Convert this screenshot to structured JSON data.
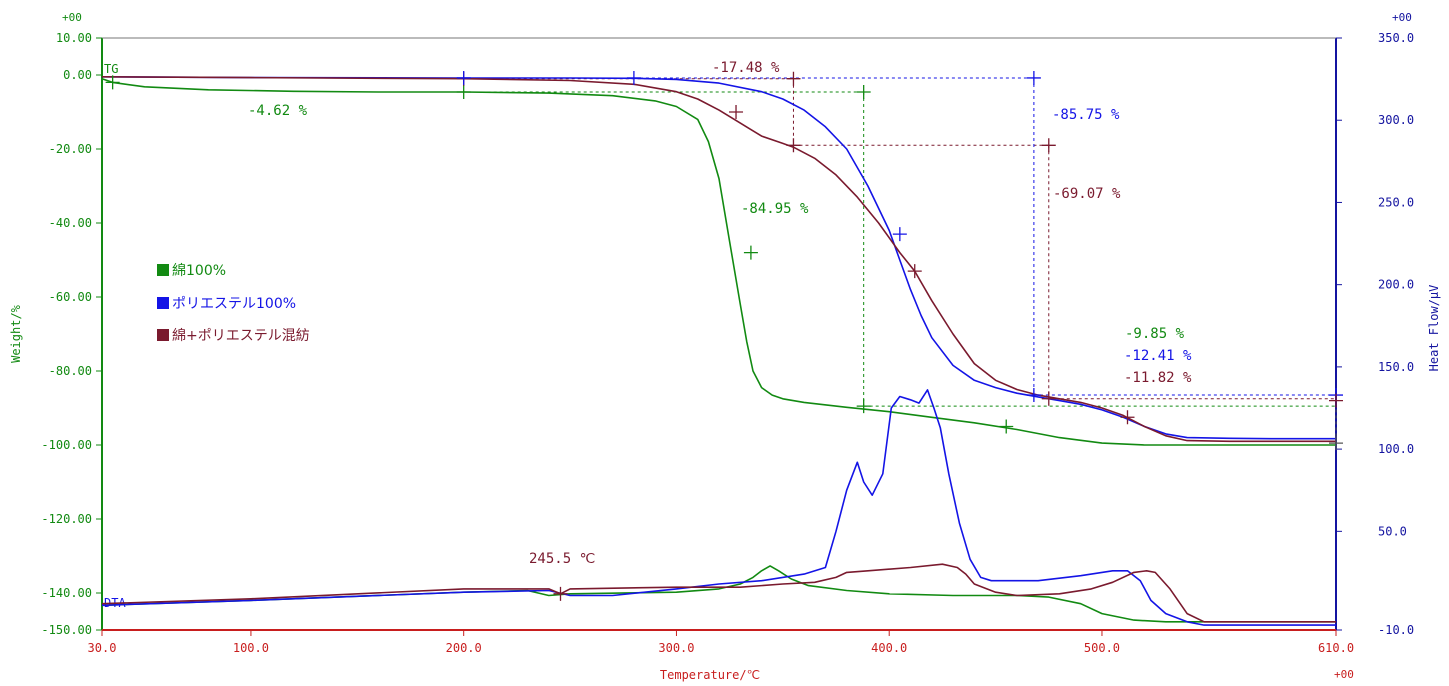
{
  "chart_data": {
    "type": "line",
    "xlabel": "Temperature/℃",
    "ylabel_left": "Weight/%",
    "ylabel_right": "Heat Flow/μV",
    "x_range": [
      30.0,
      610.0
    ],
    "x_ticks": [
      "30.0",
      "100.0",
      "200.0",
      "300.0",
      "400.0",
      "500.0",
      "610.0"
    ],
    "x_tick_values": [
      30,
      100,
      200,
      300,
      400,
      500,
      610
    ],
    "y_left_range": [
      -150.0,
      10.0
    ],
    "y_left_ticks": [
      "10.00",
      "0.00",
      "-20.00",
      "-40.00",
      "-60.00",
      "-80.00",
      "-100.00",
      "-120.00",
      "-140.00",
      "-150.00"
    ],
    "y_left_tick_values": [
      10,
      0,
      -20,
      -40,
      -60,
      -80,
      -100,
      -120,
      -140,
      -150
    ],
    "y_right_range": [
      -10.0,
      350.0
    ],
    "y_right_ticks": [
      "350.0",
      "300.0",
      "250.0",
      "200.0",
      "150.0",
      "100.0",
      "50.0",
      "-10.0"
    ],
    "y_right_tick_values": [
      350,
      300,
      250,
      200,
      150,
      100,
      50,
      -10
    ],
    "axis_exponents": {
      "left_top": "+00",
      "right_top": "+00",
      "x_right": "+00"
    },
    "curve_labels": {
      "tg": "TG",
      "dta": "DTA"
    },
    "colors": {
      "cotton": "#128a12",
      "polyester": "#1414e6",
      "blend": "#7a1a2e",
      "frame_left": "#128a12",
      "frame_right": "#1414a0",
      "frame_bottom": "#c81e1e"
    },
    "legend": [
      {
        "label": "綿100%",
        "color": "#128a12"
      },
      {
        "label": "ポリエステル100%",
        "color": "#1414e6"
      },
      {
        "label": "綿+ポリエステル混紡",
        "color": "#7a1a2e"
      }
    ],
    "series": [
      {
        "name": "綿100%",
        "kind": "TG",
        "axis": "left",
        "color": "#128a12",
        "x": [
          30,
          35,
          50,
          80,
          120,
          160,
          200,
          240,
          270,
          290,
          300,
          310,
          315,
          320,
          325,
          330,
          333,
          336,
          340,
          345,
          350,
          360,
          380,
          400,
          420,
          440,
          460,
          480,
          500,
          520,
          550,
          580,
          610
        ],
        "y": [
          -1.0,
          -2.0,
          -3.2,
          -4.0,
          -4.4,
          -4.6,
          -4.6,
          -4.9,
          -5.6,
          -7.0,
          -8.5,
          -12.0,
          -18.0,
          -28.0,
          -45.0,
          -62.0,
          -72.0,
          -80.0,
          -84.5,
          -86.5,
          -87.5,
          -88.5,
          -89.8,
          -91.0,
          -92.5,
          -94.0,
          -95.8,
          -98.0,
          -99.5,
          -100.0,
          -100.0,
          -100.0,
          -100.0
        ]
      },
      {
        "name": "ポリエステル100%",
        "kind": "TG",
        "axis": "left",
        "color": "#1414e6",
        "x": [
          30,
          100,
          200,
          250,
          280,
          300,
          320,
          340,
          350,
          360,
          370,
          380,
          390,
          400,
          405,
          410,
          415,
          420,
          430,
          440,
          450,
          460,
          470,
          480,
          490,
          500,
          510,
          520,
          530,
          540,
          560,
          580,
          610
        ],
        "y": [
          -0.5,
          -0.7,
          -0.8,
          -0.8,
          -0.9,
          -1.2,
          -2.2,
          -4.5,
          -6.5,
          -9.5,
          -14.0,
          -20.0,
          -30.0,
          -42.0,
          -50.0,
          -58.0,
          -65.0,
          -71.0,
          -78.5,
          -82.5,
          -84.5,
          -86.0,
          -87.0,
          -88.0,
          -89.0,
          -90.5,
          -92.5,
          -95.0,
          -97.0,
          -98.0,
          -98.2,
          -98.3,
          -98.3
        ]
      },
      {
        "name": "綿+ポリエステル混紡",
        "kind": "TG",
        "axis": "left",
        "color": "#7a1a2e",
        "x": [
          30,
          100,
          200,
          250,
          280,
          300,
          310,
          320,
          330,
          340,
          350,
          355,
          365,
          375,
          385,
          395,
          405,
          412,
          420,
          430,
          440,
          450,
          460,
          470,
          480,
          490,
          500,
          510,
          520,
          530,
          540,
          560,
          610
        ],
        "y": [
          -0.5,
          -0.7,
          -1.0,
          -1.5,
          -2.5,
          -4.5,
          -6.5,
          -9.5,
          -13.0,
          -16.5,
          -18.5,
          -19.5,
          -22.5,
          -27.0,
          -33.0,
          -40.0,
          -48.0,
          -53.0,
          -61.0,
          -70.0,
          -78.0,
          -82.5,
          -85.0,
          -86.5,
          -87.5,
          -88.5,
          -90.0,
          -92.0,
          -95.0,
          -97.5,
          -98.8,
          -99.0,
          -99.0
        ]
      },
      {
        "name": "綿100%",
        "kind": "DTA",
        "axis": "right",
        "color": "#128a12",
        "x": [
          30,
          100,
          200,
          230,
          240,
          250,
          300,
          320,
          330,
          336,
          340,
          344,
          348,
          354,
          362,
          380,
          400,
          430,
          460,
          475,
          490,
          500,
          515,
          530,
          560,
          610
        ],
        "y": [
          5,
          8,
          13,
          14,
          11,
          12,
          13,
          15,
          18,
          22,
          26,
          29,
          26,
          21,
          17,
          14,
          12,
          11,
          11,
          10,
          6,
          0,
          -4,
          -5,
          -5,
          -5
        ]
      },
      {
        "name": "ポリエステル100%",
        "kind": "DTA",
        "axis": "right",
        "color": "#1414e6",
        "x": [
          30,
          100,
          200,
          240,
          250,
          270,
          300,
          320,
          340,
          360,
          370,
          375,
          380,
          385,
          388,
          392,
          397,
          401,
          405,
          410,
          414,
          418,
          421,
          424,
          428,
          433,
          438,
          443,
          448,
          455,
          470,
          490,
          505,
          512,
          518,
          523,
          530,
          540,
          548,
          560,
          610
        ],
        "y": [
          5,
          8,
          13,
          14,
          11,
          11,
          15,
          18,
          20,
          24,
          28,
          50,
          75,
          92,
          80,
          72,
          85,
          125,
          132,
          130,
          128,
          136,
          125,
          113,
          85,
          55,
          33,
          22,
          20,
          20,
          20,
          23,
          26,
          26,
          20,
          8,
          0,
          -5,
          -7,
          -7,
          -7
        ]
      },
      {
        "name": "綿+ポリエステル混紡",
        "kind": "DTA",
        "axis": "right",
        "color": "#7a1a2e",
        "x": [
          30,
          100,
          200,
          240,
          245.5,
          250,
          300,
          330,
          350,
          365,
          375,
          380,
          390,
          410,
          425,
          432,
          436,
          440,
          450,
          460,
          480,
          495,
          505,
          515,
          521,
          525,
          532,
          540,
          548,
          560,
          610
        ],
        "y": [
          6,
          9,
          15,
          15,
          12,
          15,
          16,
          16,
          18,
          19,
          22,
          25,
          26,
          28,
          30,
          28,
          24,
          18,
          13,
          11,
          12,
          15,
          19,
          25,
          26,
          25,
          15,
          0,
          -5,
          -5,
          -5
        ]
      }
    ],
    "annotations": [
      {
        "text": "-4.62 %",
        "color": "#128a12"
      },
      {
        "text": "-84.95 %",
        "color": "#128a12"
      },
      {
        "text": "-9.85 %",
        "color": "#128a12"
      },
      {
        "text": "-17.48 %",
        "color": "#7a1a2e"
      },
      {
        "text": "-69.07 %",
        "color": "#7a1a2e"
      },
      {
        "text": "-11.82 %",
        "color": "#7a1a2e"
      },
      {
        "text": "-85.75 %",
        "color": "#1414e6"
      },
      {
        "text": "-12.41 %",
        "color": "#1414e6"
      },
      {
        "text": "245.5 ℃",
        "color": "#7a1a2e"
      }
    ]
  }
}
